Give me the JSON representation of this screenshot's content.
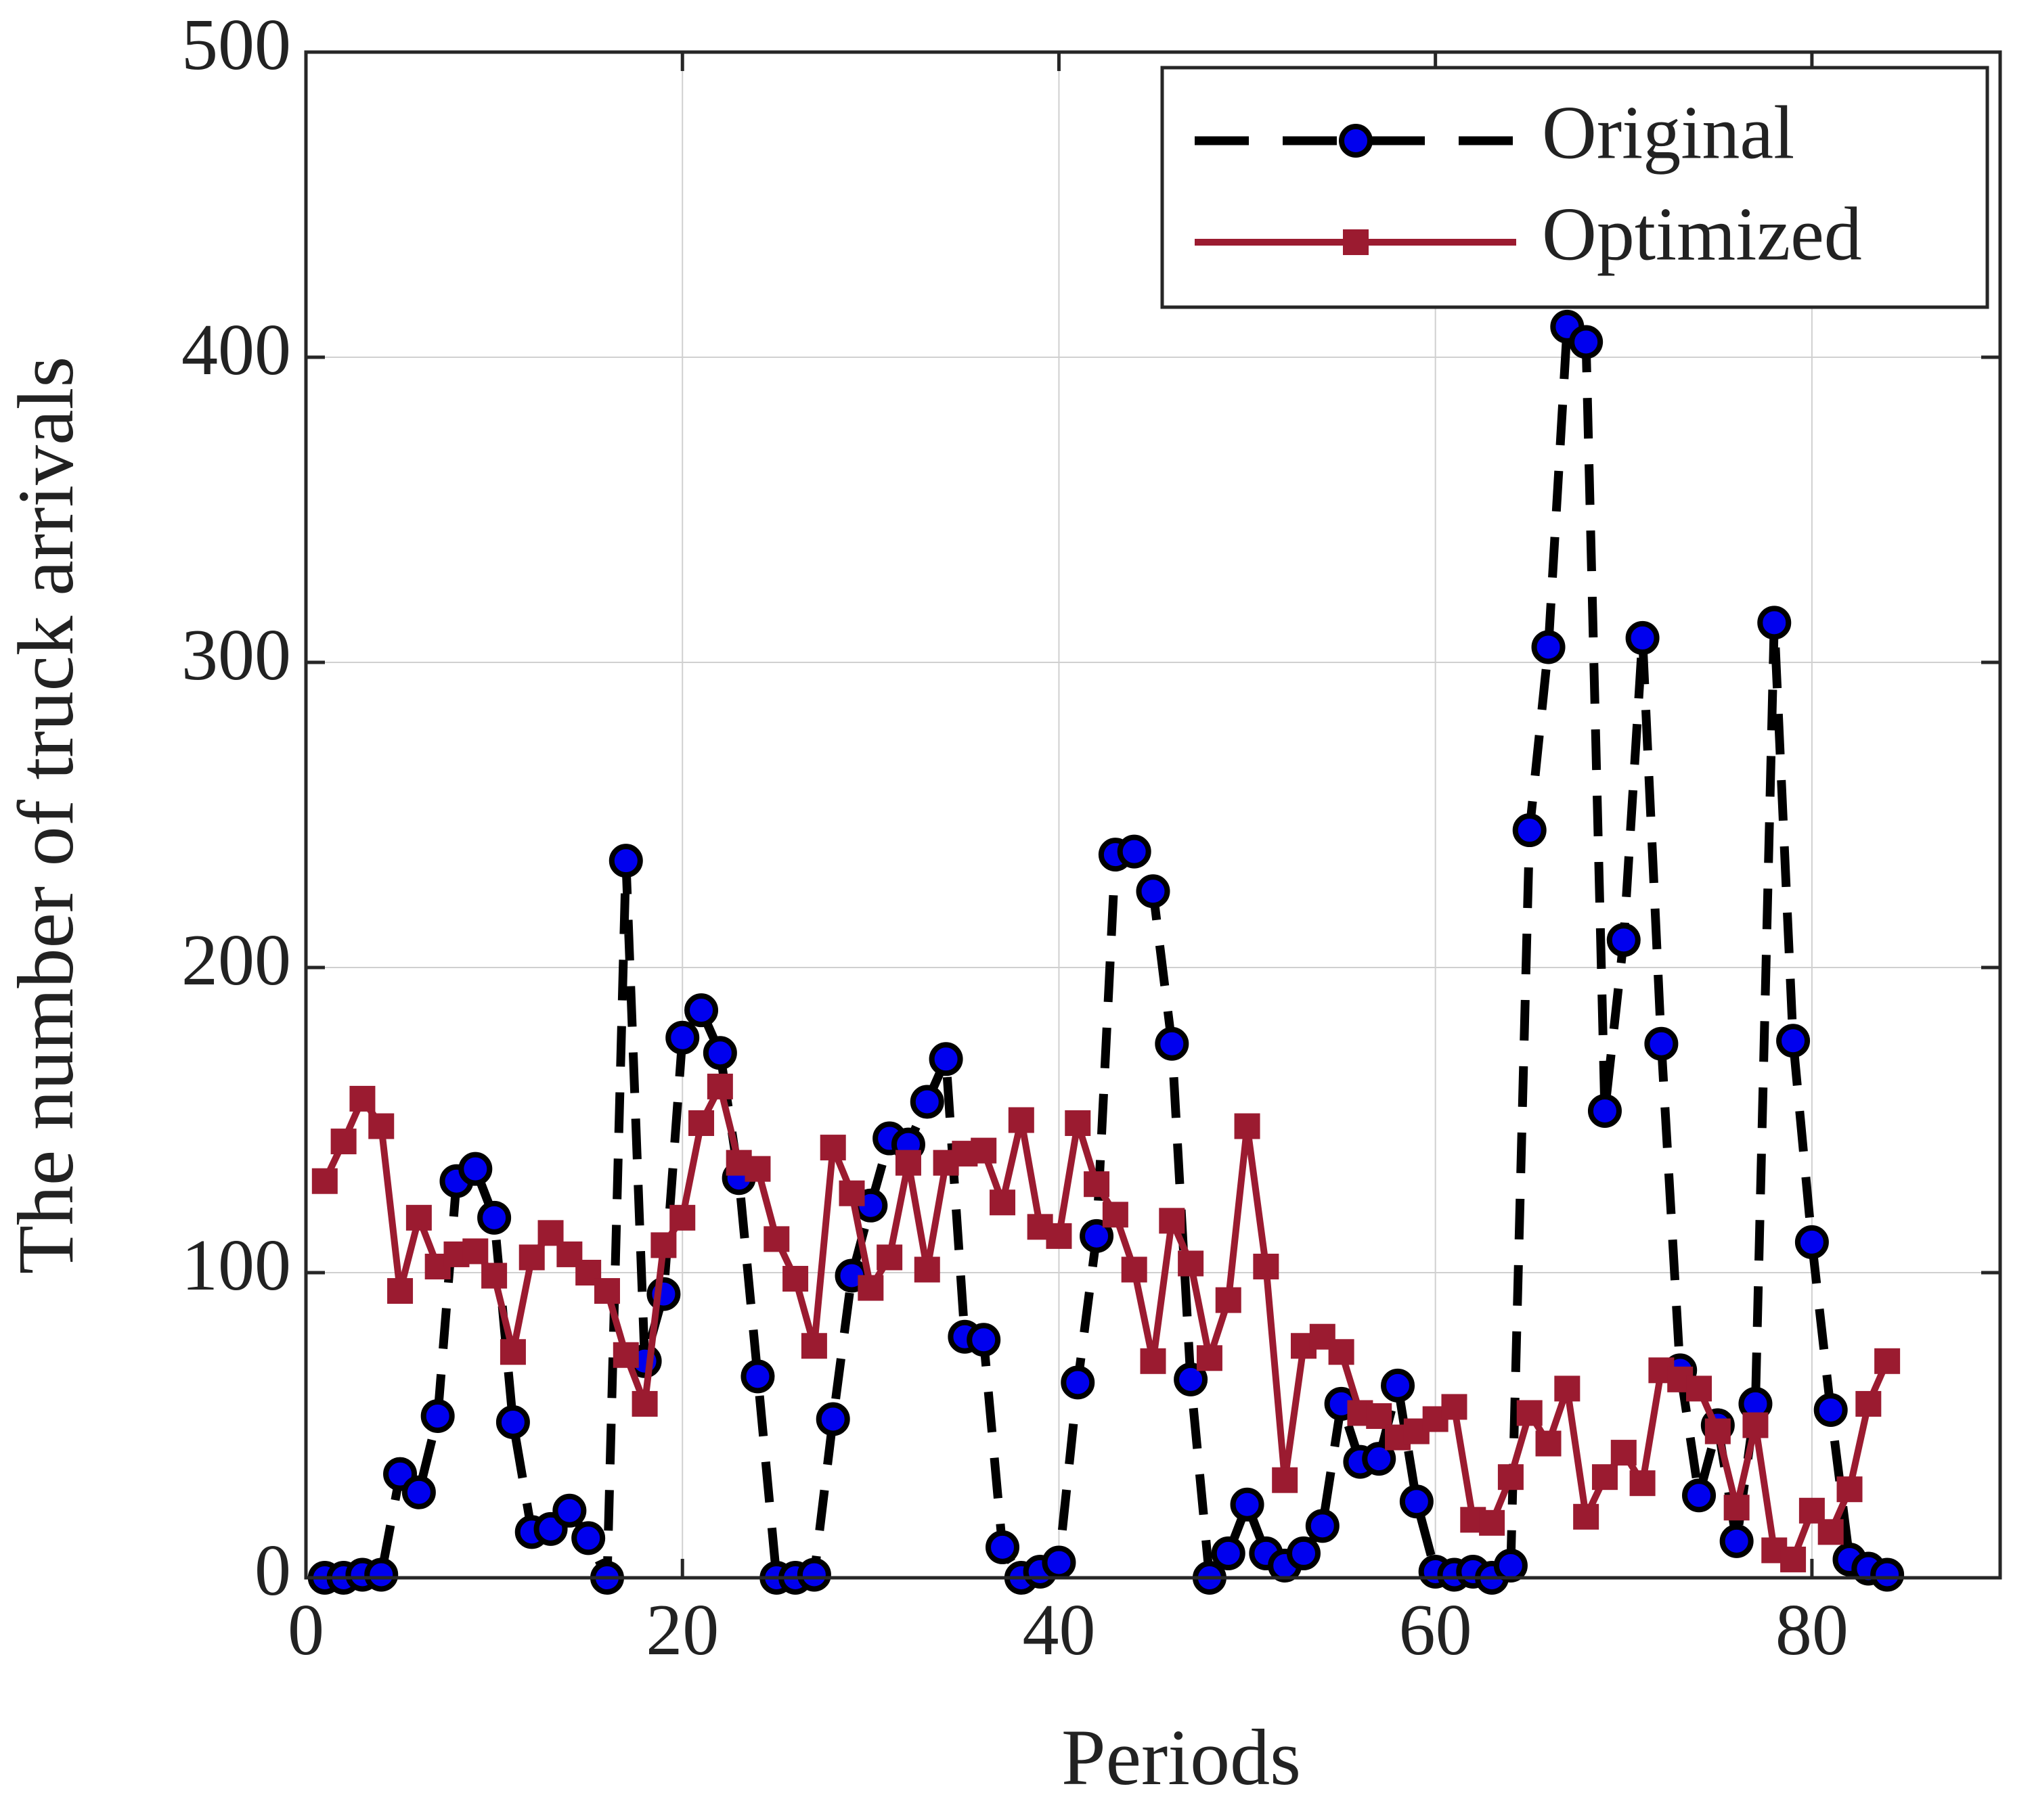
{
  "chart_data": {
    "type": "line",
    "xlabel": "Periods",
    "ylabel": "The number of truck arrivals",
    "x": [
      1,
      2,
      3,
      4,
      5,
      6,
      7,
      8,
      9,
      10,
      11,
      12,
      13,
      14,
      15,
      16,
      17,
      18,
      19,
      20,
      21,
      22,
      23,
      24,
      25,
      26,
      27,
      28,
      29,
      30,
      31,
      32,
      33,
      34,
      35,
      36,
      37,
      38,
      39,
      40,
      41,
      42,
      43,
      44,
      45,
      46,
      47,
      48,
      49,
      50,
      51,
      52,
      53,
      54,
      55,
      56,
      57,
      58,
      59,
      60,
      61,
      62,
      63,
      64,
      65,
      66,
      67,
      68,
      69,
      70,
      71,
      72,
      73,
      74,
      75,
      76,
      77,
      78,
      79,
      80,
      81,
      82,
      83,
      84
    ],
    "series": [
      {
        "name": "Original",
        "color": "#000000",
        "marker_color": "#0000ee",
        "values": [
          0,
          0,
          1,
          1,
          34,
          28,
          53,
          130,
          134,
          118,
          51,
          15,
          16,
          22,
          13,
          0,
          235,
          71,
          93,
          177,
          186,
          172,
          131,
          66,
          0,
          0,
          1,
          52,
          99,
          122,
          144,
          142,
          156,
          170,
          79,
          78,
          10,
          0,
          2,
          5,
          64,
          112,
          237,
          238,
          225,
          175,
          65,
          0,
          8,
          24,
          8,
          4,
          8,
          17,
          57,
          38,
          39,
          63,
          25,
          2,
          1,
          2,
          0,
          4,
          245,
          305,
          410,
          405,
          153,
          209,
          308,
          175,
          68,
          27,
          50,
          12,
          57,
          313,
          176,
          110,
          55,
          6,
          3,
          1
        ]
      },
      {
        "name": "Optimized",
        "color": "#9b1b30",
        "values": [
          130,
          143,
          157,
          148,
          94,
          118,
          102,
          106,
          107,
          99,
          74,
          105,
          113,
          106,
          100,
          94,
          73,
          57,
          109,
          118,
          149,
          161,
          136,
          134,
          111,
          98,
          76,
          141,
          126,
          95,
          105,
          136,
          101,
          136,
          139,
          140,
          123,
          150,
          115,
          112,
          149,
          129,
          119,
          101,
          71,
          117,
          103,
          72,
          91,
          148,
          102,
          32,
          76,
          79,
          74,
          54,
          53,
          46,
          48,
          52,
          56,
          19,
          18,
          33,
          54,
          44,
          62,
          20,
          33,
          41,
          31,
          68,
          65,
          62,
          48,
          23,
          50,
          9,
          6,
          22,
          15,
          29,
          57,
          71
        ]
      }
    ],
    "xlim": [
      0,
      90
    ],
    "xticks": [
      0,
      20,
      40,
      60,
      80
    ],
    "ylim": [
      0,
      500
    ],
    "yticks": [
      0,
      100,
      200,
      300,
      400,
      500
    ],
    "grid": true,
    "legend": "upper right"
  }
}
